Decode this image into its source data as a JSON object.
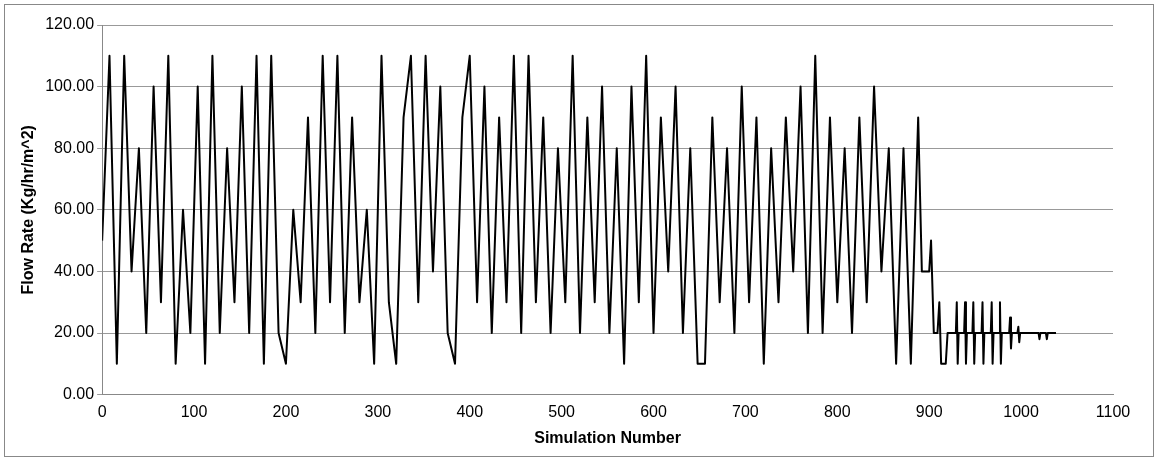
{
  "chart_data": {
    "type": "line",
    "xlabel": "Simulation Number",
    "ylabel": "Flow Rate (Kg/hr/m^2)",
    "x": [
      0,
      8,
      16,
      24,
      32,
      40,
      48,
      56,
      64,
      72,
      80,
      88,
      96,
      104,
      112,
      120,
      128,
      136,
      144,
      152,
      160,
      168,
      176,
      184,
      192,
      200,
      208,
      216,
      224,
      232,
      240,
      248,
      256,
      264,
      272,
      280,
      288,
      296,
      304,
      312,
      320,
      328,
      336,
      344,
      352,
      360,
      368,
      376,
      384,
      392,
      400,
      408,
      416,
      424,
      432,
      440,
      448,
      456,
      464,
      472,
      480,
      488,
      496,
      504,
      512,
      520,
      528,
      536,
      544,
      552,
      560,
      568,
      576,
      584,
      592,
      600,
      608,
      616,
      624,
      632,
      640,
      648,
      656,
      664,
      672,
      680,
      688,
      696,
      704,
      712,
      720,
      728,
      736,
      744,
      752,
      760,
      768,
      776,
      784,
      792,
      800,
      808,
      816,
      824,
      832,
      840,
      848,
      856,
      864,
      872,
      880,
      888,
      892,
      900,
      902,
      905,
      909,
      911,
      913,
      918,
      920,
      929,
      930,
      931,
      932,
      938,
      939,
      940,
      941,
      947,
      948,
      949,
      950,
      957,
      958,
      959,
      960,
      967,
      968,
      969,
      970,
      976,
      977,
      978,
      979,
      987,
      988,
      989,
      990,
      996,
      997,
      998,
      999,
      1019,
      1020,
      1021,
      1027,
      1028,
      1029,
      1038
    ],
    "series": [
      {
        "color": "#000000",
        "values": [
          50,
          110,
          10,
          110,
          40,
          80,
          20,
          100,
          30,
          110,
          10,
          60,
          20,
          100,
          10,
          110,
          20,
          80,
          30,
          100,
          20,
          110,
          10,
          110,
          20,
          10,
          60,
          30,
          90,
          20,
          110,
          30,
          110,
          20,
          90,
          30,
          60,
          10,
          110,
          30,
          10,
          90,
          110,
          30,
          110,
          40,
          100,
          20,
          10,
          90,
          110,
          30,
          100,
          20,
          90,
          30,
          110,
          20,
          110,
          30,
          90,
          20,
          80,
          30,
          110,
          20,
          90,
          30,
          100,
          20,
          80,
          10,
          100,
          30,
          110,
          20,
          90,
          40,
          100,
          20,
          80,
          10,
          10,
          90,
          30,
          80,
          20,
          100,
          30,
          90,
          10,
          80,
          30,
          90,
          40,
          100,
          20,
          110,
          20,
          90,
          30,
          80,
          20,
          90,
          30,
          100,
          40,
          80,
          10,
          80,
          10,
          90,
          40,
          40,
          50,
          20,
          20,
          30,
          10,
          10,
          20,
          20,
          30,
          10,
          20,
          20,
          30,
          10,
          20,
          20,
          30,
          10,
          20,
          20,
          30,
          10,
          20,
          20,
          30,
          10,
          20,
          20,
          30,
          10,
          20,
          20,
          25,
          15,
          20,
          20,
          22,
          17,
          20,
          20,
          18,
          20,
          20,
          18,
          20,
          20
        ]
      }
    ],
    "xlim": [
      0,
      1100
    ],
    "xticks": [
      0,
      100,
      200,
      300,
      400,
      500,
      600,
      700,
      800,
      900,
      1000,
      1100
    ],
    "ylim": [
      0,
      120
    ],
    "yticks": [
      {
        "value": 0,
        "label": "0.00"
      },
      {
        "value": 20,
        "label": "20.00"
      },
      {
        "value": 40,
        "label": "40.00"
      },
      {
        "value": 60,
        "label": "60.00"
      },
      {
        "value": 80,
        "label": "80.00"
      },
      {
        "value": 100,
        "label": "100.00"
      },
      {
        "value": 120,
        "label": "120.00"
      }
    ],
    "grid": "y",
    "legend": false,
    "marker": "none",
    "line_style": "solid"
  }
}
